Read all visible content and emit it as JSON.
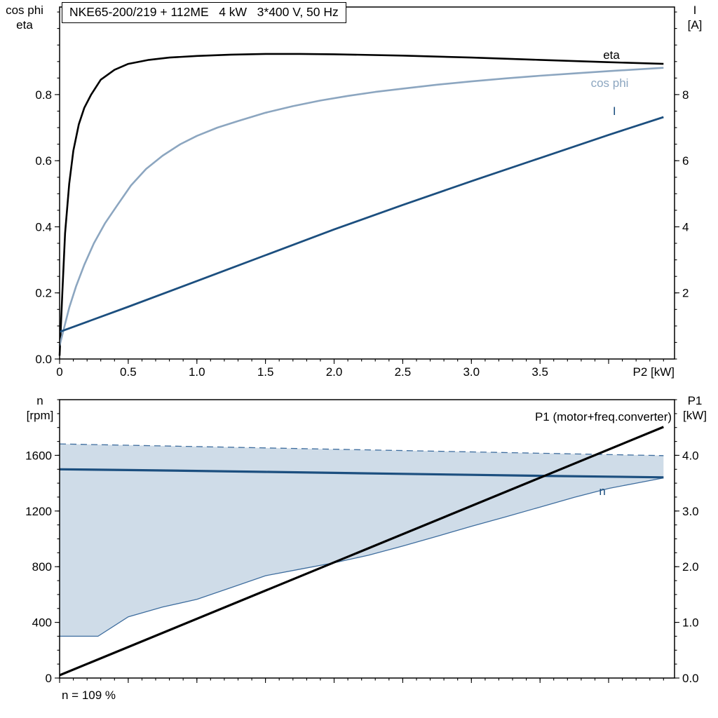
{
  "colors": {
    "black": "#000000",
    "dark_blue": "#1c4f7f",
    "light_blue": "#8ca6c0",
    "band_fill": "#cfdce8",
    "band_border": "#3e6d9e"
  },
  "chart_data": [
    {
      "type": "line",
      "title": "NKE65-200/219 + 112ME   4 kW   3*400 V, 50 Hz",
      "xlabel": "P2 [kW]",
      "ylabel_left_lines": [
        "cos phi",
        "eta"
      ],
      "ylabel_right_lines": [
        "I",
        "[A]"
      ],
      "xlim": [
        0,
        4.48
      ],
      "ylim_left": [
        0,
        1.065
      ],
      "ylim_right": [
        0,
        10.65
      ],
      "grid": false,
      "legend": "inline-labels",
      "x_ticks": {
        "values": [
          0,
          0.5,
          1,
          1.5,
          2,
          2.5,
          3,
          3.5,
          4
        ],
        "labels": [
          "0",
          "0.5",
          "1.0",
          "1.5",
          "2.0",
          "2.5",
          "3.0",
          "3.5",
          ""
        ],
        "minor_step": 0.1
      },
      "y_left_ticks": {
        "values": [
          0,
          0.2,
          0.4,
          0.6,
          0.8
        ],
        "labels": [
          "0.0",
          "0.2",
          "0.4",
          "0.6",
          "0.8"
        ],
        "minor_step": 0.05
      },
      "y_right_ticks": {
        "values": [
          2,
          4,
          6,
          8
        ],
        "labels": [
          "2",
          "4",
          "6",
          "8"
        ],
        "minor_step": 0.5
      },
      "series": [
        {
          "id": "eta",
          "name": "eta",
          "axis": "left",
          "color": "#000000",
          "width": 2.6,
          "x": [
            0,
            0.02,
            0.04,
            0.07,
            0.1,
            0.14,
            0.18,
            0.23,
            0.3,
            0.4,
            0.5,
            0.65,
            0.8,
            1.0,
            1.25,
            1.5,
            1.75,
            2.0,
            2.5,
            3.0,
            3.5,
            4.0,
            4.4
          ],
          "y": [
            0.01,
            0.2,
            0.38,
            0.53,
            0.63,
            0.71,
            0.76,
            0.8,
            0.845,
            0.875,
            0.893,
            0.905,
            0.912,
            0.917,
            0.921,
            0.923,
            0.923,
            0.922,
            0.918,
            0.912,
            0.905,
            0.898,
            0.893
          ],
          "label": {
            "text": "eta",
            "x": 3.96,
            "y": 0.908,
            "anchor": "start"
          }
        },
        {
          "id": "cos-phi",
          "name": "cos phi",
          "axis": "left",
          "color": "#8ca6c0",
          "width": 2.6,
          "x": [
            0,
            0.03,
            0.07,
            0.12,
            0.18,
            0.25,
            0.33,
            0.42,
            0.52,
            0.63,
            0.75,
            0.88,
            1.0,
            1.15,
            1.3,
            1.5,
            1.7,
            1.9,
            2.1,
            2.3,
            2.5,
            2.75,
            3.0,
            3.25,
            3.5,
            3.75,
            4.0,
            4.2,
            4.4
          ],
          "y": [
            0.04,
            0.09,
            0.155,
            0.22,
            0.285,
            0.35,
            0.41,
            0.465,
            0.525,
            0.575,
            0.615,
            0.65,
            0.675,
            0.7,
            0.72,
            0.745,
            0.765,
            0.782,
            0.796,
            0.808,
            0.818,
            0.83,
            0.84,
            0.849,
            0.857,
            0.864,
            0.871,
            0.876,
            0.881
          ],
          "label": {
            "text": "cos phi",
            "x": 3.87,
            "y": 0.823,
            "anchor": "start"
          }
        },
        {
          "id": "current",
          "name": "I",
          "axis": "right",
          "color": "#1c4f7f",
          "width": 2.8,
          "x": [
            0,
            0.5,
            1.0,
            1.5,
            2.0,
            2.5,
            3.0,
            3.5,
            4.0,
            4.4
          ],
          "y": [
            0.82,
            1.58,
            2.36,
            3.14,
            3.92,
            4.66,
            5.38,
            6.08,
            6.78,
            7.32
          ],
          "label": {
            "text": "I",
            "x": 4.03,
            "y": 7.38,
            "anchor": "start"
          }
        }
      ]
    },
    {
      "type": "line",
      "title": "",
      "xlabel": "",
      "ylabel_left_lines": [
        "n",
        "[rpm]"
      ],
      "ylabel_right_lines": [
        "P1",
        "[kW]"
      ],
      "xlim": [
        0,
        4.48
      ],
      "ylim_left": [
        0,
        2000
      ],
      "ylim_right": [
        0,
        5.0
      ],
      "grid": false,
      "annotation": "n = 109 %",
      "x_ticks": {
        "values": [
          0,
          0.5,
          1,
          1.5,
          2,
          2.5,
          3,
          3.5,
          4
        ],
        "labels": [],
        "minor_step": 0.1
      },
      "y_left_ticks": {
        "values": [
          0,
          400,
          800,
          1200,
          1600
        ],
        "labels": [
          "0",
          "400",
          "800",
          "1200",
          "1600"
        ],
        "minor_step": 100
      },
      "y_right_ticks": {
        "values": [
          0,
          1,
          2,
          3,
          4
        ],
        "labels": [
          "0.0",
          "1.0",
          "2.0",
          "3.0",
          "4.0"
        ],
        "minor_step": 0.25
      },
      "band": {
        "name": "speed-control-range",
        "axis": "left",
        "fill": "#cfdce8",
        "stroke": "#3e6d9e",
        "dash": "9 6",
        "lower": {
          "x": [
            0,
            0.28,
            0.5,
            0.75,
            1.0,
            1.25,
            1.5,
            1.75,
            2.0,
            2.25,
            2.5,
            2.75,
            3.0,
            3.25,
            3.5,
            3.75,
            4.0,
            4.2,
            4.4
          ],
          "y": [
            300,
            300,
            440,
            510,
            565,
            650,
            735,
            782,
            828,
            882,
            948,
            1018,
            1090,
            1158,
            1228,
            1298,
            1362,
            1400,
            1438
          ]
        },
        "upper": {
          "x": [
            0,
            4.4
          ],
          "y": [
            1682,
            1598
          ]
        }
      },
      "series": [
        {
          "id": "speed",
          "name": "n",
          "axis": "left",
          "color": "#1c4f7f",
          "width": 3.2,
          "x": [
            0,
            0.5,
            1.0,
            1.5,
            2.0,
            2.5,
            3.0,
            3.5,
            4.0,
            4.4
          ],
          "y": [
            1500,
            1494,
            1488,
            1481,
            1474,
            1467,
            1460,
            1453,
            1447,
            1442
          ],
          "label": {
            "text": "n",
            "x": 3.93,
            "y": 1315,
            "anchor": "start"
          }
        },
        {
          "id": "p1",
          "name": "P1 (motor+freq.converter)",
          "axis": "right",
          "color": "#000000",
          "width": 3.2,
          "x": [
            0,
            4.4
          ],
          "y": [
            0.05,
            4.51
          ],
          "label": {
            "text": "P1 (motor+freq.converter)",
            "x": 4.46,
            "y": 4.62,
            "anchor": "end"
          }
        }
      ]
    }
  ]
}
